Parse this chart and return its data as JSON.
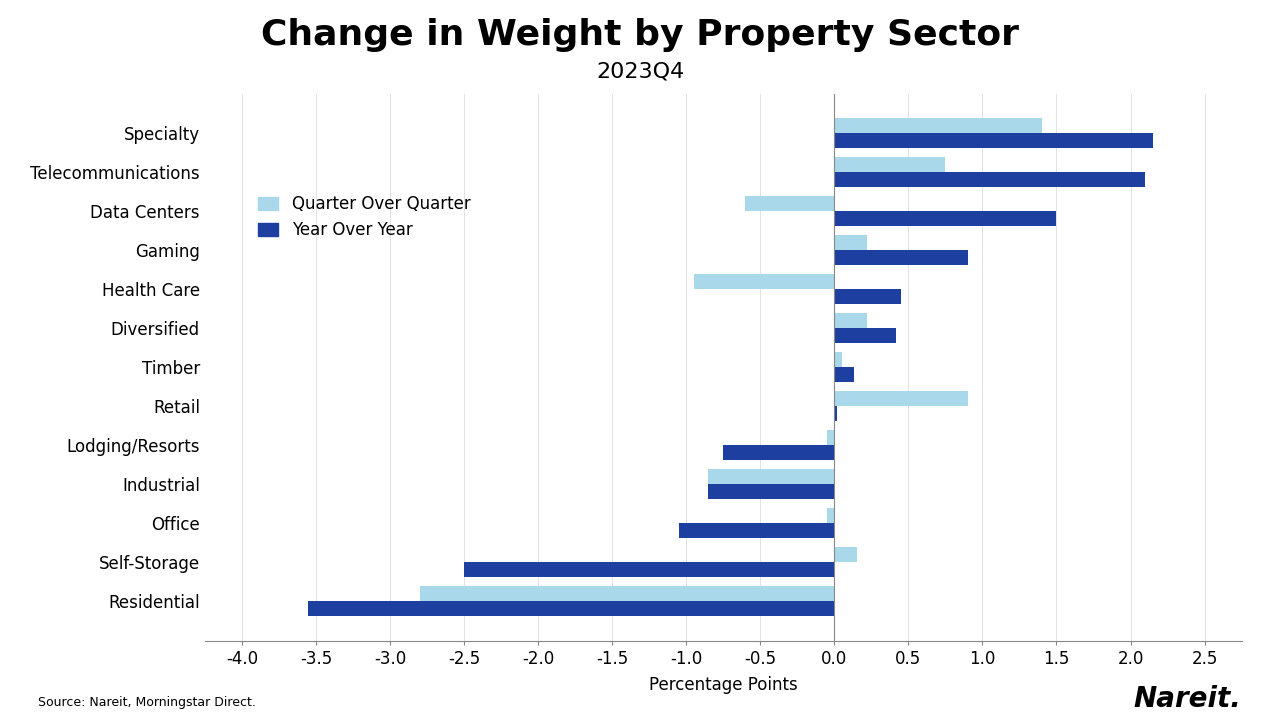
{
  "title": "Change in Weight by Property Sector",
  "subtitle": "2023Q4",
  "xlabel": "Percentage Points",
  "categories": [
    "Residential",
    "Self-Storage",
    "Office",
    "Industrial",
    "Lodging/Resorts",
    "Retail",
    "Timber",
    "Diversified",
    "Health Care",
    "Gaming",
    "Data Centers",
    "Telecommunications",
    "Specialty"
  ],
  "qoq": [
    -2.8,
    0.15,
    -0.05,
    -0.85,
    -0.05,
    0.9,
    0.05,
    0.22,
    -0.95,
    0.22,
    -0.6,
    0.75,
    1.4
  ],
  "yoy": [
    -3.55,
    -2.5,
    -1.05,
    -0.85,
    -0.75,
    0.02,
    0.13,
    0.42,
    0.45,
    0.9,
    1.5,
    2.1,
    2.15
  ],
  "qoq_color": "#a8d8ea",
  "yoy_color": "#1c3fa0",
  "xlim": [
    -4.25,
    2.75
  ],
  "xticks": [
    -4.0,
    -3.5,
    -3.0,
    -2.5,
    -2.0,
    -1.5,
    -1.0,
    -0.5,
    0.0,
    0.5,
    1.0,
    1.5,
    2.0,
    2.5
  ],
  "background_color": "#ffffff",
  "title_fontsize": 26,
  "subtitle_fontsize": 16,
  "axis_fontsize": 12,
  "tick_fontsize": 12,
  "legend_fontsize": 12,
  "bar_height": 0.38,
  "source_text": "Source: Nareit, Morningstar Direct.",
  "nareit_text": "Nareit."
}
